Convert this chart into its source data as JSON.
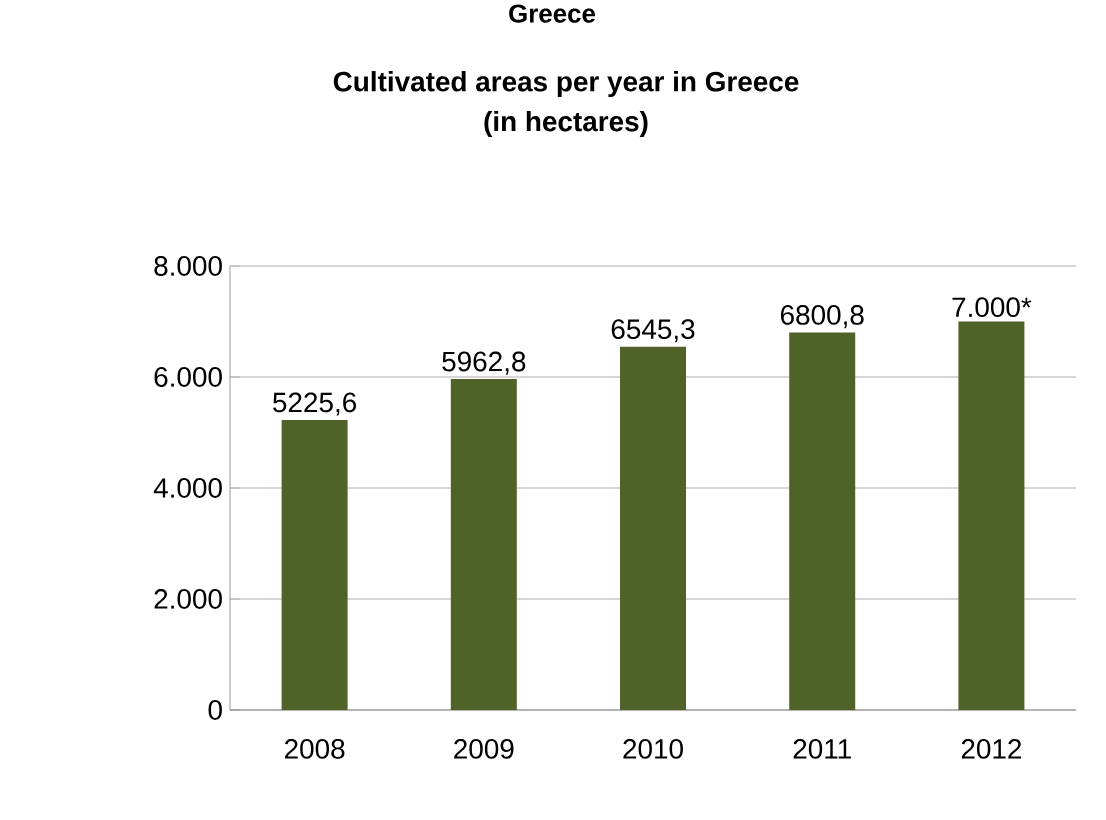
{
  "chart_data": {
    "type": "bar",
    "title": "Cultivated areas per year in Greece\n(in hectares)",
    "annotations": [
      "Greece"
    ],
    "categories": [
      "2008",
      "2009",
      "2010",
      "2011",
      "2012"
    ],
    "values": [
      5225.6,
      5962.8,
      6545.3,
      6800.8,
      7000
    ],
    "value_labels": [
      "5225,6",
      "5962,8",
      "6545,3",
      "6800,8",
      "7.000*"
    ],
    "color": "#4f6228",
    "ylim": [
      0,
      8000
    ],
    "yticks": [
      {
        "value": 0,
        "label": "0"
      },
      {
        "value": 2000,
        "label": "2.000"
      },
      {
        "value": 4000,
        "label": "4.000"
      },
      {
        "value": 6000,
        "label": "6.000"
      },
      {
        "value": 8000,
        "label": "8.000"
      }
    ],
    "grid": "y"
  }
}
